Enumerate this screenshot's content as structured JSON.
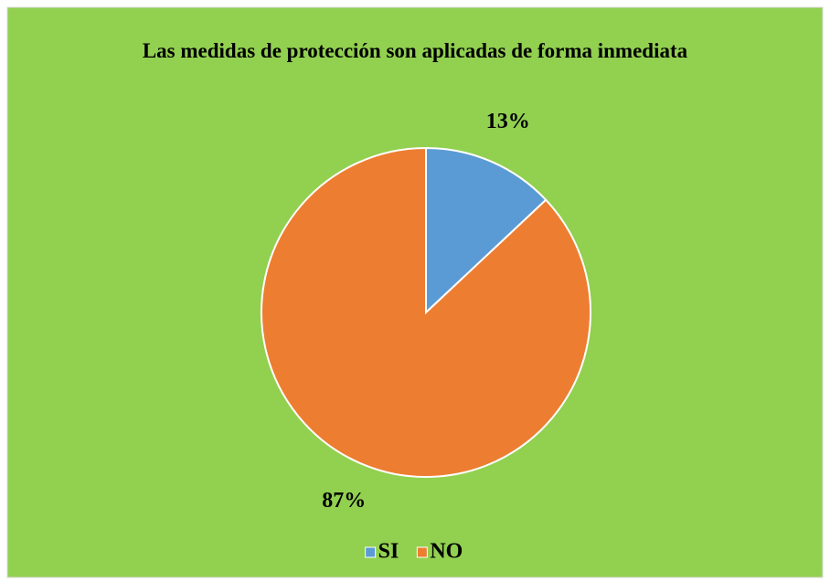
{
  "chart_data": {
    "type": "pie",
    "title": "Las medidas de protección son aplicadas de forma inmediata",
    "categories": [
      "SI",
      "NO"
    ],
    "values": [
      13,
      87
    ],
    "value_labels": [
      "13%",
      "87%"
    ],
    "colors": [
      "#5b9bd5",
      "#ed7d31"
    ],
    "legend": "bottom"
  }
}
